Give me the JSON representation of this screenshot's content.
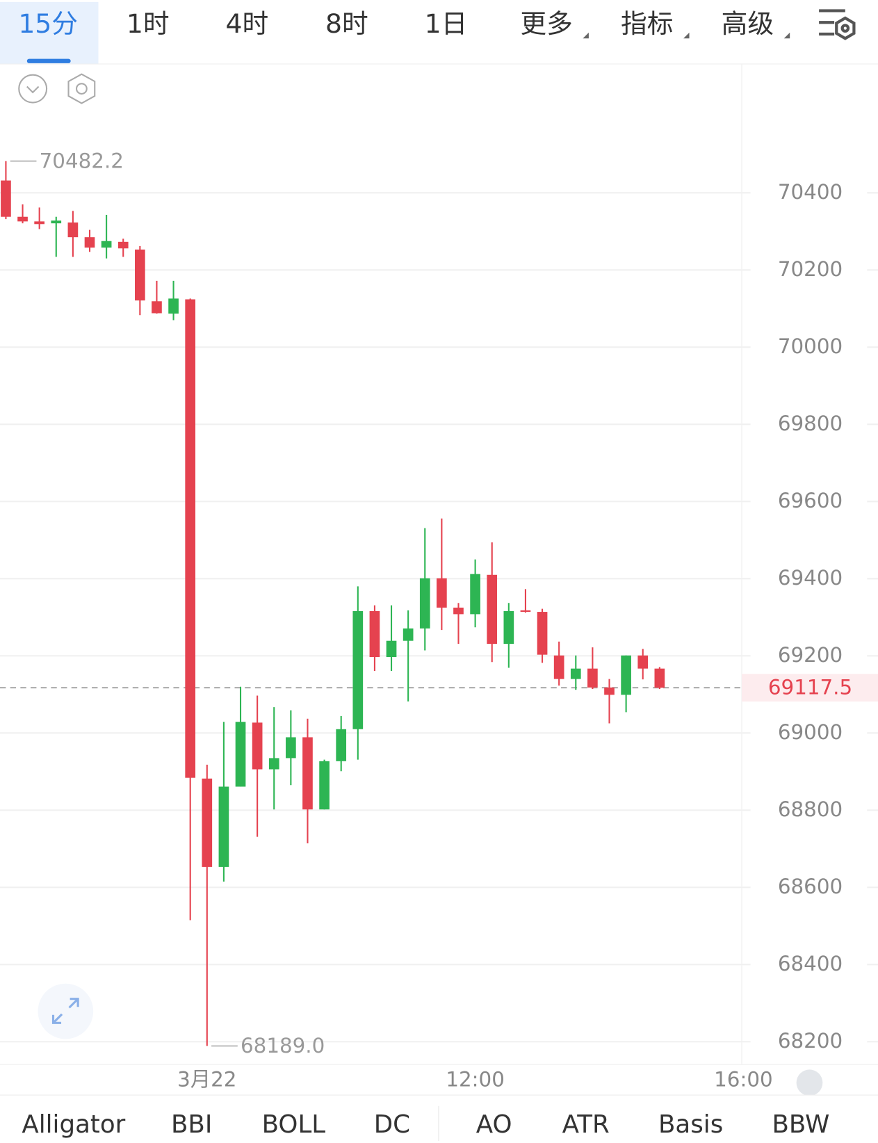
{
  "tabs": [
    "15分",
    "1时",
    "4时",
    "8时",
    "1日",
    "更多",
    "指标",
    "高级"
  ],
  "indicators": [
    "Alligator",
    "BBI",
    "BOLL",
    "DC",
    "AO",
    "ATR",
    "Basis",
    "BBW"
  ],
  "chart_data": {
    "type": "candlestick",
    "x": [
      0,
      1,
      2,
      3,
      4,
      5,
      6,
      7,
      8,
      9,
      10,
      11,
      12,
      13,
      14,
      15,
      16,
      17,
      18,
      19,
      20,
      21,
      22,
      23,
      24,
      25,
      26,
      27,
      28,
      29,
      30,
      31,
      32,
      33,
      34,
      35,
      36,
      37,
      38,
      39
    ],
    "open": [
      70432,
      70338,
      70326,
      70321,
      70323,
      70285,
      70258,
      70273,
      70253,
      70119,
      70087,
      70124,
      68882,
      68653,
      68861,
      69027,
      68906,
      68935,
      68989,
      68802,
      68927,
      69010,
      69316,
      69197,
      69239,
      69271,
      69401,
      69325,
      69308,
      69410,
      69231,
      69318,
      69314,
      69201,
      69140,
      69167,
      69118,
      69099,
      69201,
      69167
    ],
    "high": [
      70482.2,
      70370,
      70362,
      70338,
      70353,
      70304,
      70343,
      70281,
      70262,
      70172,
      70172,
      70126,
      68918,
      69029,
      69120,
      69097,
      69067,
      69059,
      69037,
      68931,
      69044,
      69380,
      69331,
      69331,
      69318,
      69531,
      69556,
      69337,
      69450,
      69494,
      69337,
      69373,
      69322,
      69237,
      69201,
      69222,
      69140,
      69201,
      69218,
      69171
    ],
    "low": [
      70332,
      70321,
      70306,
      70234,
      70234,
      70247,
      70230,
      70234,
      70083,
      70087,
      70070,
      68515,
      68189,
      68615,
      68861,
      68731,
      68802,
      68865,
      68714,
      68802,
      68901,
      68931,
      69161,
      69161,
      69082,
      69214,
      69267,
      69231,
      69274,
      69184,
      69169,
      69312,
      69182,
      69123,
      69112,
      69114,
      69025,
      69054,
      69139,
      69114
    ],
    "close": [
      70338,
      70326,
      70319,
      70328,
      70285,
      70258,
      70275,
      70256,
      70121,
      70088,
      70126,
      68884,
      68653,
      68861,
      69029,
      68906,
      68935,
      68989,
      68802,
      68927,
      69010,
      69316,
      69197,
      69239,
      69271,
      69401,
      69325,
      69308,
      69412,
      69231,
      69316,
      69314,
      69203,
      69140,
      69167,
      69118,
      69099,
      69201,
      69167,
      69117.5
    ],
    "up_color": "#2db553",
    "down_color": "#e5424f",
    "xlim": [
      -0.35,
      43.9
    ],
    "xticks": [
      {
        "value": 12,
        "label": "3月22"
      },
      {
        "value": 28,
        "label": "12:00"
      },
      {
        "value": 44,
        "label": "16:00"
      }
    ],
    "ylim": [
      68141,
      70734
    ],
    "yticks": [
      68200,
      68400,
      68600,
      68800,
      69000,
      69200,
      69400,
      69600,
      69800,
      70000,
      70200,
      70400
    ],
    "grid": true,
    "annotations": [
      {
        "x": 0,
        "value": 70482.2,
        "label": "70482.2"
      },
      {
        "x": 12,
        "value": 68189,
        "label": "68189.0"
      }
    ],
    "last_price": 69117.5
  }
}
